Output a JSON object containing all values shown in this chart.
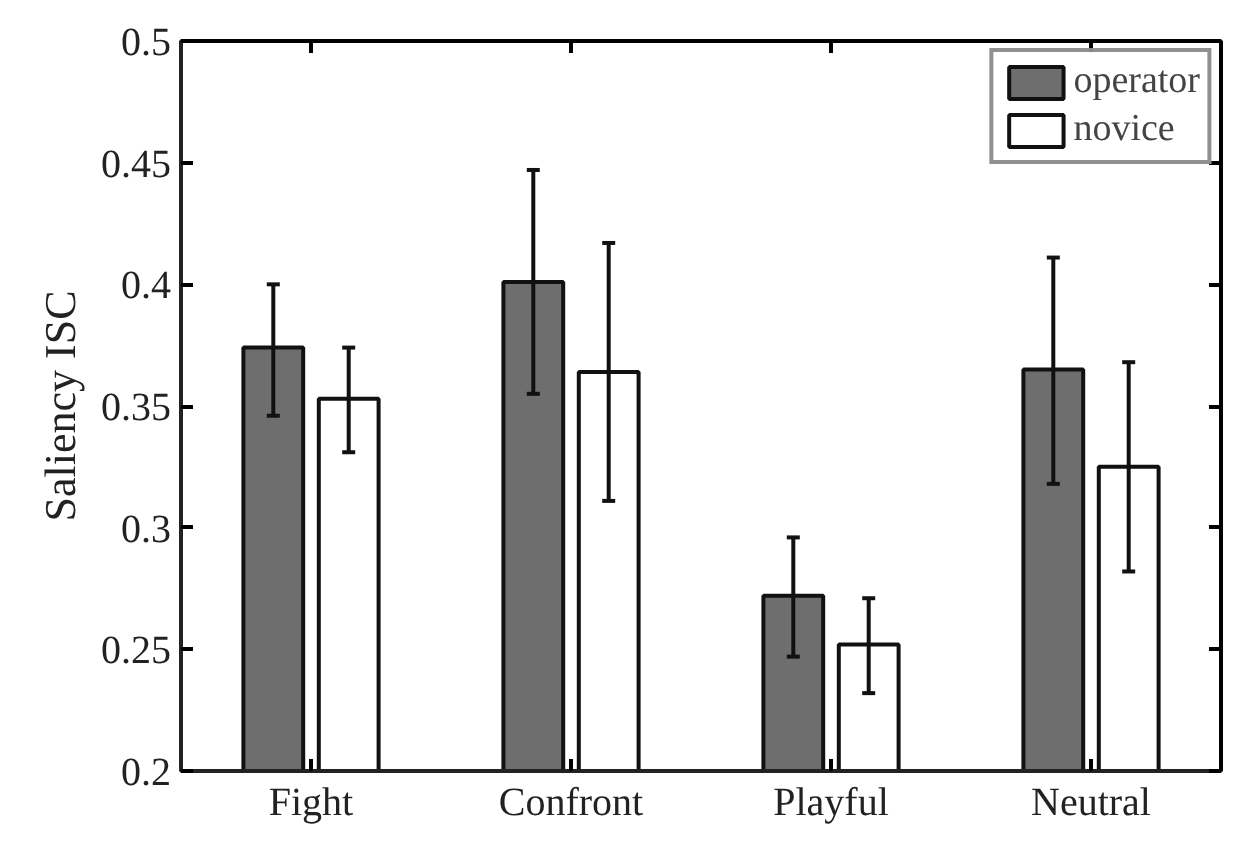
{
  "chart_data": {
    "type": "bar",
    "ylabel": "Saliency ISC",
    "categories": [
      "Fight",
      "Confront",
      "Playful",
      "Neutral"
    ],
    "series": [
      {
        "name": "operator",
        "color": "#6e6e6e",
        "values": [
          0.374,
          0.401,
          0.272,
          0.365
        ],
        "errors": [
          [
            0.346,
            0.4
          ],
          [
            0.355,
            0.447
          ],
          [
            0.247,
            0.296
          ],
          [
            0.318,
            0.411
          ]
        ]
      },
      {
        "name": "novice",
        "color": "#ffffff",
        "values": [
          0.353,
          0.364,
          0.252,
          0.325
        ],
        "errors": [
          [
            0.331,
            0.374
          ],
          [
            0.311,
            0.417
          ],
          [
            0.232,
            0.271
          ],
          [
            0.282,
            0.368
          ]
        ]
      }
    ],
    "ylim": [
      0.2,
      0.5
    ],
    "yticks": [
      0.2,
      0.25,
      0.3,
      0.35,
      0.4,
      0.45,
      0.5
    ],
    "grid": false,
    "legend": "top right"
  }
}
